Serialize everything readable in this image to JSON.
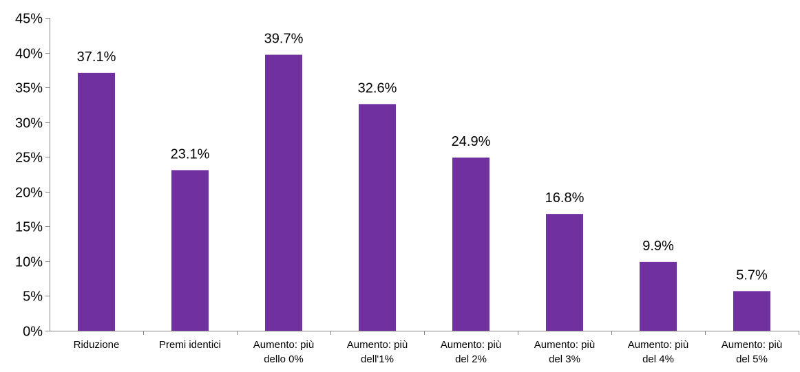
{
  "chart_data": {
    "type": "bar",
    "categories": [
      "Riduzione",
      "Premi identici",
      "Aumento: più dello 0%",
      "Aumento: più dell'1%",
      "Aumento: più del 2%",
      "Aumento: più del 3%",
      "Aumento: più del 4%",
      "Aumento: più del 5%"
    ],
    "category_lines": [
      [
        "Riduzione"
      ],
      [
        "Premi identici"
      ],
      [
        "Aumento: più",
        "dello 0%"
      ],
      [
        "Aumento: più",
        "dell'1%"
      ],
      [
        "Aumento: più",
        "del 2%"
      ],
      [
        "Aumento: più",
        "del 3%"
      ],
      [
        "Aumento: più",
        "del 4%"
      ],
      [
        "Aumento: più",
        "del 5%"
      ]
    ],
    "values": [
      37.1,
      23.1,
      39.7,
      32.6,
      24.9,
      16.8,
      9.9,
      5.7
    ],
    "data_labels": [
      "37.1%",
      "23.1%",
      "39.7%",
      "32.6%",
      "24.9%",
      "16.8%",
      "9.9%",
      "5.7%"
    ],
    "title": "",
    "xlabel": "",
    "ylabel": "",
    "ylim": [
      0,
      45
    ],
    "yticks": [
      0,
      5,
      10,
      15,
      20,
      25,
      30,
      35,
      40,
      45
    ],
    "ytick_labels": [
      "0%",
      "5%",
      "10%",
      "15%",
      "20%",
      "25%",
      "30%",
      "35%",
      "40%",
      "45%"
    ],
    "grid": false,
    "legend": "none",
    "bar_color": "#7030A0",
    "axis_color": "#868686"
  }
}
